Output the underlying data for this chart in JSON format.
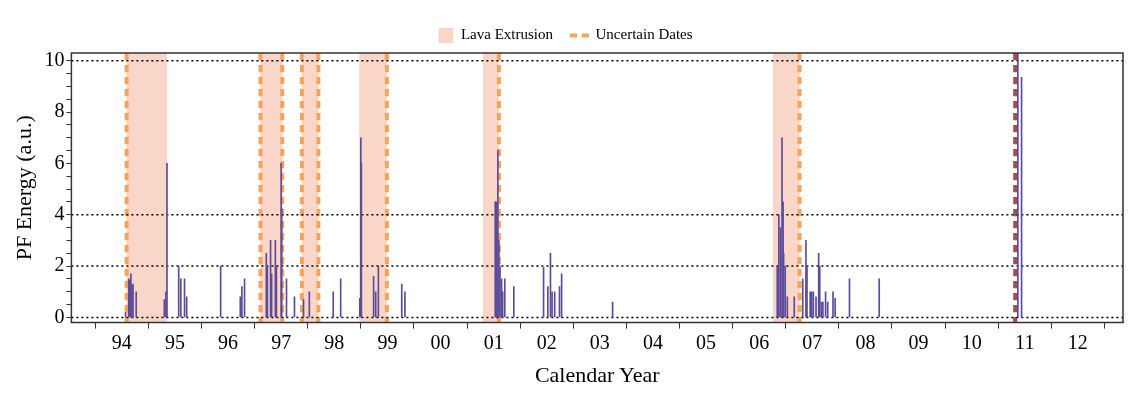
{
  "chart_data": {
    "type": "bar",
    "xlabel": "Calendar Year",
    "ylabel": "PF Energy (a.u.)",
    "x": [
      1994.07,
      1994.13,
      1994.15,
      1994.17,
      1994.19,
      1994.21,
      1994.27,
      1994.8,
      1994.83,
      1994.85,
      1995.07,
      1995.11,
      1995.18,
      1995.22,
      1995.86,
      1996.23,
      1996.26,
      1996.31,
      1996.72,
      1996.74,
      1996.8,
      1996.82,
      1996.89,
      1996.91,
      1997.0,
      1997.01,
      1997.1,
      1997.25,
      1997.42,
      1997.53,
      1997.98,
      1998.12,
      1998.48,
      1998.5,
      1998.51,
      1998.74,
      1998.78,
      1998.83,
      1999.27,
      1999.33,
      2001.03,
      2001.05,
      2001.08,
      2001.1,
      2001.12,
      2001.15,
      2001.17,
      2001.21,
      2001.38,
      2001.94,
      2002.02,
      2002.07,
      2002.1,
      2002.15,
      2002.24,
      2002.28,
      2003.24,
      2006.34,
      2006.37,
      2006.4,
      2006.43,
      2006.45,
      2006.46,
      2006.49,
      2006.53,
      2006.66,
      2006.82,
      2006.88,
      2006.9,
      2006.96,
      2006.99,
      2007.02,
      2007.07,
      2007.12,
      2007.14,
      2007.17,
      2007.2,
      2007.25,
      2007.29,
      2007.39,
      2007.43,
      2007.7,
      2008.26,
      2010.87,
      2010.94
    ],
    "series": [
      {
        "color": "#5b4b9b",
        "values": [
          0.2,
          1.5,
          1.45,
          1.7,
          1.25,
          1.3,
          1.0,
          0.7,
          1.0,
          6.0,
          2.0,
          1.5,
          1.5,
          0.8,
          2.0,
          0.8,
          1.2,
          1.5,
          2.5,
          2.0,
          3.0,
          1.7,
          3.0,
          2.0,
          6.0,
          4.25,
          1.5,
          0.8,
          0.7,
          1.0,
          1.0,
          1.5,
          0.75,
          7.0,
          6.0,
          1.6,
          1.0,
          2.0,
          1.3,
          1.0,
          4.5,
          4.5,
          6.5,
          3.0,
          2.0,
          1.5,
          1.0,
          1.5,
          1.2,
          1.95,
          1.2,
          2.5,
          1.0,
          1.0,
          1.2,
          1.7,
          0.6,
          1.95,
          4.0,
          3.5,
          7.0,
          4.5,
          2.5,
          2.0,
          0.8,
          0.8,
          1.5,
          3.0,
          2.0,
          1.0,
          1.0,
          1.0,
          0.8,
          2.5,
          2.0,
          0.6,
          0.6,
          1.0,
          0.6,
          1.0,
          0.75,
          1.5,
          1.5,
          10.3,
          9.35
        ]
      }
    ],
    "xlim": [
      1993.05,
      2012.85
    ],
    "xticks": [
      {
        "value": 1994,
        "label": "94"
      },
      {
        "value": 1995,
        "label": "95"
      },
      {
        "value": 1996,
        "label": "96"
      },
      {
        "value": 1997,
        "label": "97"
      },
      {
        "value": 1998,
        "label": "98"
      },
      {
        "value": 1999,
        "label": "99"
      },
      {
        "value": 2000,
        "label": "00"
      },
      {
        "value": 2001,
        "label": "01"
      },
      {
        "value": 2002,
        "label": "02"
      },
      {
        "value": 2003,
        "label": "03"
      },
      {
        "value": 2004,
        "label": "04"
      },
      {
        "value": 2005,
        "label": "05"
      },
      {
        "value": 2006,
        "label": "06"
      },
      {
        "value": 2007,
        "label": "07"
      },
      {
        "value": 2008,
        "label": "08"
      },
      {
        "value": 2009,
        "label": "09"
      },
      {
        "value": 2010,
        "label": "10"
      },
      {
        "value": 2011,
        "label": "11"
      },
      {
        "value": 2012,
        "label": "12"
      }
    ],
    "ylim": [
      -0.2,
      10.3
    ],
    "yticks": [
      0,
      {
        "value": 0.5,
        "label": null
      },
      {
        "value": 1,
        "label": null
      },
      {
        "value": 1.5,
        "label": null
      },
      2,
      {
        "value": 2.5,
        "label": null
      },
      {
        "value": 3,
        "label": null
      },
      {
        "value": 3.5,
        "label": null
      },
      4,
      {
        "value": 4.5,
        "label": null
      },
      {
        "value": 5,
        "label": null
      },
      {
        "value": 5.5,
        "label": null
      },
      6,
      {
        "value": 6.5,
        "label": null
      },
      {
        "value": 7,
        "label": null
      },
      {
        "value": 7.5,
        "label": null
      },
      8,
      {
        "value": 8.5,
        "label": null
      },
      {
        "value": 9,
        "label": null
      },
      {
        "value": 9.5,
        "label": null
      },
      10
    ],
    "grid": false,
    "legend": "top",
    "bands": [
      {
        "axis": "x",
        "from": 1994.09,
        "to": 1994.85,
        "label": "Lava Extrusion",
        "color": "#fad6c8"
      },
      {
        "axis": "x",
        "from": 1996.61,
        "to": 1997.02,
        "color": "#fad6c8"
      },
      {
        "axis": "x",
        "from": 1997.39,
        "to": 1997.7,
        "color": "#fad6c8"
      },
      {
        "axis": "x",
        "from": 1998.47,
        "to": 1998.99,
        "color": "#fad6c8"
      },
      {
        "axis": "x",
        "from": 2000.8,
        "to": 2001.1,
        "color": "#fad6c8"
      },
      {
        "axis": "x",
        "from": 2006.26,
        "to": 2006.76,
        "color": "#fad6c8"
      }
    ],
    "ref_lines": [
      {
        "axis": "x",
        "value": 1994.09,
        "label": "Uncertain Dates",
        "color": "#f9a35a",
        "line_style": "dashed"
      },
      {
        "axis": "x",
        "value": 1996.61,
        "color": "#f9a35a",
        "line_style": "dashed"
      },
      {
        "axis": "x",
        "value": 1997.02,
        "color": "#f9a35a",
        "line_style": "dashed"
      },
      {
        "axis": "x",
        "value": 1997.39,
        "color": "#f9a35a",
        "line_style": "dashed"
      },
      {
        "axis": "x",
        "value": 1997.7,
        "color": "#f9a35a",
        "line_style": "dashed"
      },
      {
        "axis": "x",
        "value": 1998.99,
        "color": "#f9a35a",
        "line_style": "dashed"
      },
      {
        "axis": "x",
        "value": 2001.1,
        "color": "#f9a35a",
        "line_style": "dashed"
      },
      {
        "axis": "x",
        "value": 2006.76,
        "color": "#f9a35a",
        "line_style": "dashed"
      },
      {
        "axis": "x",
        "value": 2010.82,
        "color": "#a3504c",
        "line_style": "dashed"
      },
      {
        "axis": "y",
        "value": 0,
        "color": "#000000",
        "line_style": "dotted"
      },
      {
        "axis": "y",
        "value": 2,
        "color": "#000000",
        "line_style": "dotted"
      },
      {
        "axis": "y",
        "value": 4,
        "color": "#000000",
        "line_style": "dotted"
      },
      {
        "axis": "y",
        "value": 10,
        "color": "#000000",
        "line_style": "dotted"
      }
    ]
  }
}
